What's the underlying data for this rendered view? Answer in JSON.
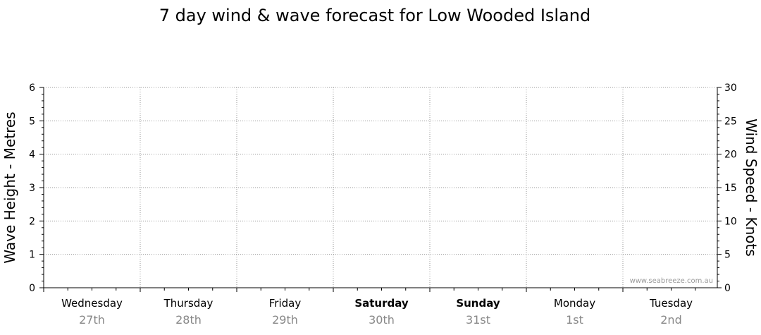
{
  "chart_data": {
    "type": "line",
    "title": "7 day wind & wave forecast for Low Wooded Island",
    "y_left_label": "Wave Height - Metres",
    "y_right_label": "Wind Speed - Knots",
    "y_left_range": [
      0,
      6
    ],
    "y_left_ticks": [
      "0",
      "1",
      "2",
      "3",
      "4",
      "5",
      "6"
    ],
    "y_right_range": [
      0,
      30
    ],
    "y_right_ticks": [
      "0",
      "5",
      "10",
      "15",
      "20",
      "25",
      "30"
    ],
    "grid": true,
    "days": [
      {
        "name": "Wednesday",
        "date": "27th",
        "bold": false
      },
      {
        "name": "Thursday",
        "date": "28th",
        "bold": false
      },
      {
        "name": "Friday",
        "date": "29th",
        "bold": false
      },
      {
        "name": "Saturday",
        "date": "30th",
        "bold": true
      },
      {
        "name": "Sunday",
        "date": "31st",
        "bold": true
      },
      {
        "name": "Monday",
        "date": "1st",
        "bold": false
      },
      {
        "name": "Tuesday",
        "date": "2nd",
        "bold": false
      }
    ],
    "series": [],
    "watermark": "www.seabreeze.com.au",
    "colors": {
      "grid": "#999999",
      "axis": "#000000",
      "date_text": "#888888"
    }
  }
}
